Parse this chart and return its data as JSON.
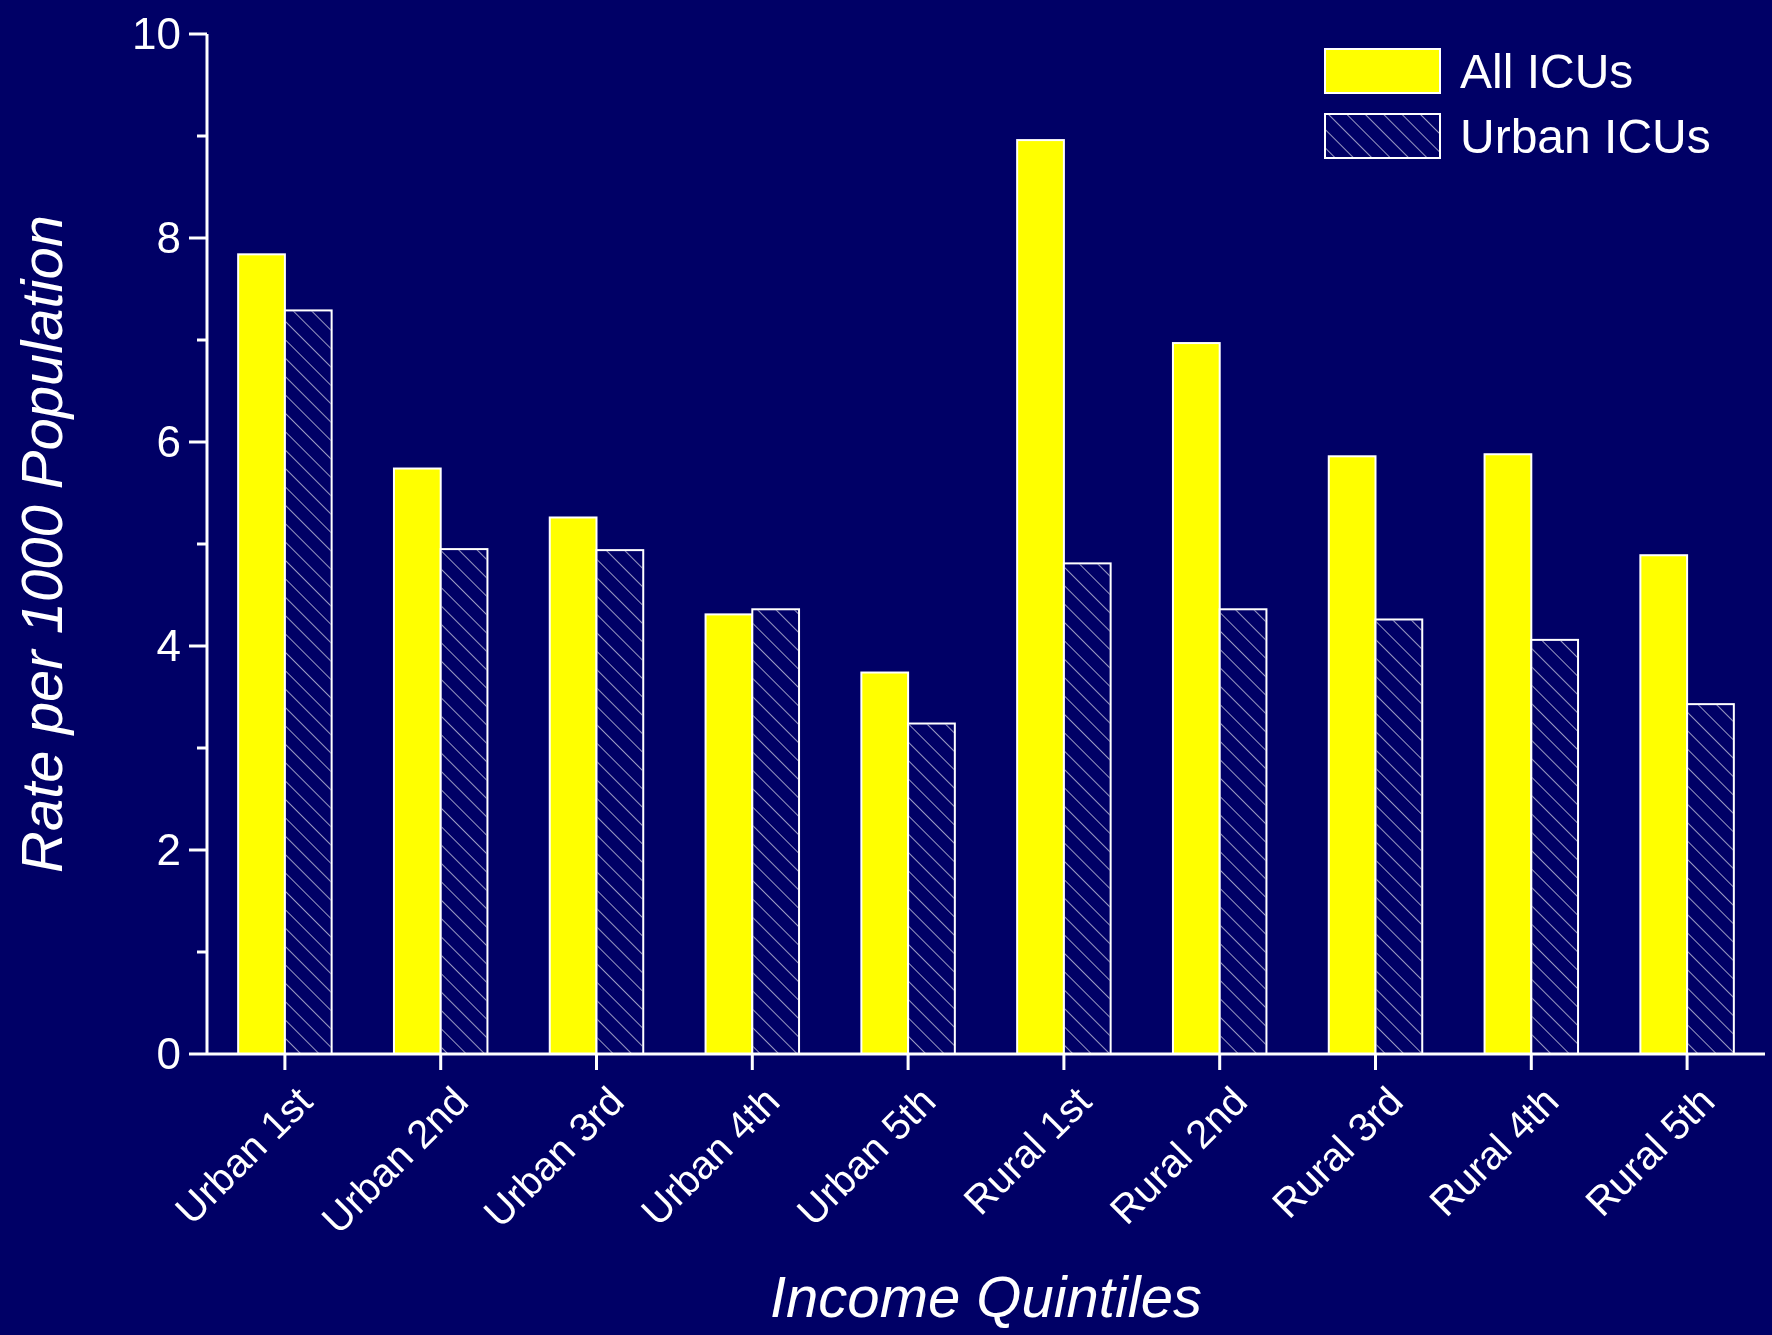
{
  "chart_data": {
    "type": "bar",
    "xlabel": "Income Quintiles",
    "ylabel": "Rate per 1000 Population",
    "categories": [
      "Urban 1st",
      "Urban 2nd",
      "Urban 3rd",
      "Urban 4th",
      "Urban 5th",
      "Rural 1st",
      "Rural 2nd",
      "Rural 3rd",
      "Rural 4th",
      "Rural 5th"
    ],
    "series": [
      {
        "name": "All ICUs",
        "color": "#ffff00",
        "values": [
          7.84,
          5.74,
          5.26,
          4.31,
          3.74,
          8.96,
          6.97,
          5.86,
          5.88,
          4.89
        ]
      },
      {
        "name": "Urban ICUs",
        "color": "#000066",
        "values": [
          7.29,
          4.95,
          4.94,
          4.36,
          3.24,
          4.81,
          4.36,
          4.26,
          4.06,
          3.43
        ]
      }
    ],
    "ylim": [
      0,
      10
    ],
    "yticks": [
      0,
      {
        "value": 1,
        "label": null
      },
      2,
      {
        "value": 3,
        "label": null
      },
      4,
      {
        "value": 5,
        "label": null
      },
      6,
      {
        "value": 7,
        "label": null
      },
      8,
      {
        "value": 9,
        "label": null
      },
      10
    ],
    "grid": false,
    "legend": "top right"
  }
}
